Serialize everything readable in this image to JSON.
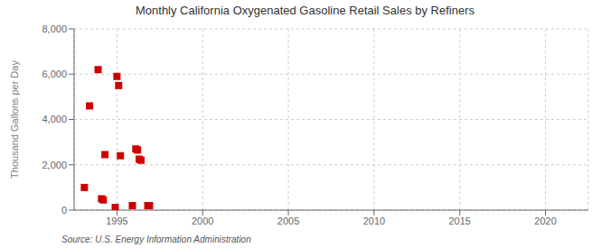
{
  "chart_data": {
    "type": "scatter",
    "title": "Monthly California Oxygenated Gasoline Retail Sales by Refiners",
    "ylabel": "Thousand Gallons per Day",
    "source": "Source: U.S. Energy Information Administration",
    "x": [
      1993.1,
      1993.4,
      1993.9,
      1994.1,
      1994.2,
      1994.3,
      1994.9,
      1995.0,
      1995.1,
      1995.2,
      1995.9,
      1996.1,
      1996.2,
      1996.3,
      1996.4,
      1996.8,
      1996.9
    ],
    "values": [
      1000,
      4600,
      6200,
      500,
      450,
      2450,
      120,
      5900,
      5500,
      2400,
      200,
      2700,
      2650,
      2250,
      2200,
      200,
      200
    ],
    "color": "#cc0000",
    "marker": "square",
    "xlim": [
      1992.5,
      2022.5
    ],
    "xticks": [
      1995,
      2000,
      2005,
      2010,
      2015,
      2020
    ],
    "ylim": [
      0,
      8000
    ],
    "yticks": [
      0,
      {
        "value": 2000,
        "label": "2,000"
      },
      {
        "value": 4000,
        "label": "4,000"
      },
      {
        "value": 6000,
        "label": "6,000"
      },
      {
        "value": 8000,
        "label": "8,000"
      }
    ],
    "grid": true
  }
}
